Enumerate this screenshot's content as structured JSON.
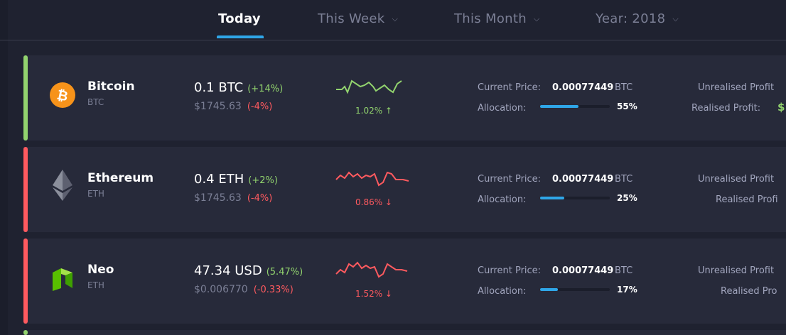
{
  "tabs": [
    {
      "label": "Today",
      "active": true
    },
    {
      "label": "This Week",
      "active": false
    },
    {
      "label": "This Month",
      "active": false
    },
    {
      "label": "Year: 2018",
      "active": false
    }
  ],
  "labels": {
    "current_price": "Current Price:",
    "allocation": "Allocation:",
    "unrealised_profit": "Unrealised Profit",
    "realised_profit": "Realised Profit:",
    "realised_profit_partial": "Realised Profi",
    "realised_profit_partial2": "Realised Pro"
  },
  "coins": [
    {
      "name": "Bitcoin",
      "symbol": "BTC",
      "amount": "0.1 BTC",
      "amount_change": "(+14%)",
      "fiat": "$1745.63",
      "fiat_change": "(-4%)",
      "spark_change": "1.02% ↑",
      "trend": "up",
      "current_price": "0.00077449",
      "price_unit": "BTC",
      "allocation": "55%",
      "allocation_value": 0.55,
      "realised_profit_value": "$",
      "accent": "#92d36e",
      "icon": "bitcoin-icon"
    },
    {
      "name": "Ethereum",
      "symbol": "ETH",
      "amount": "0.4 ETH",
      "amount_change": "(+2%)",
      "fiat": "$1745.63",
      "fiat_change": "(-4%)",
      "spark_change": "0.86% ↓",
      "trend": "down",
      "current_price": "0.00077449",
      "price_unit": "BTC",
      "allocation": "25%",
      "allocation_value": 0.25,
      "accent": "#ff5a5f",
      "icon": "ethereum-icon"
    },
    {
      "name": "Neo",
      "symbol": "ETH",
      "amount": "47.34 USD",
      "amount_change": "(5.47%)",
      "fiat": "$0.006770",
      "fiat_change": "(-0.33%)",
      "spark_change": "1.52% ↓",
      "trend": "down",
      "current_price": "0.00077449",
      "price_unit": "BTC",
      "allocation": "17%",
      "allocation_value": 0.17,
      "accent": "#ff5a5f",
      "icon": "neo-icon"
    }
  ],
  "colors": {
    "accent_blue": "#2fa6e8",
    "positive": "#92d36e",
    "negative": "#ff5a5f",
    "background": "#1f2230",
    "row_background": "#272a3a"
  }
}
